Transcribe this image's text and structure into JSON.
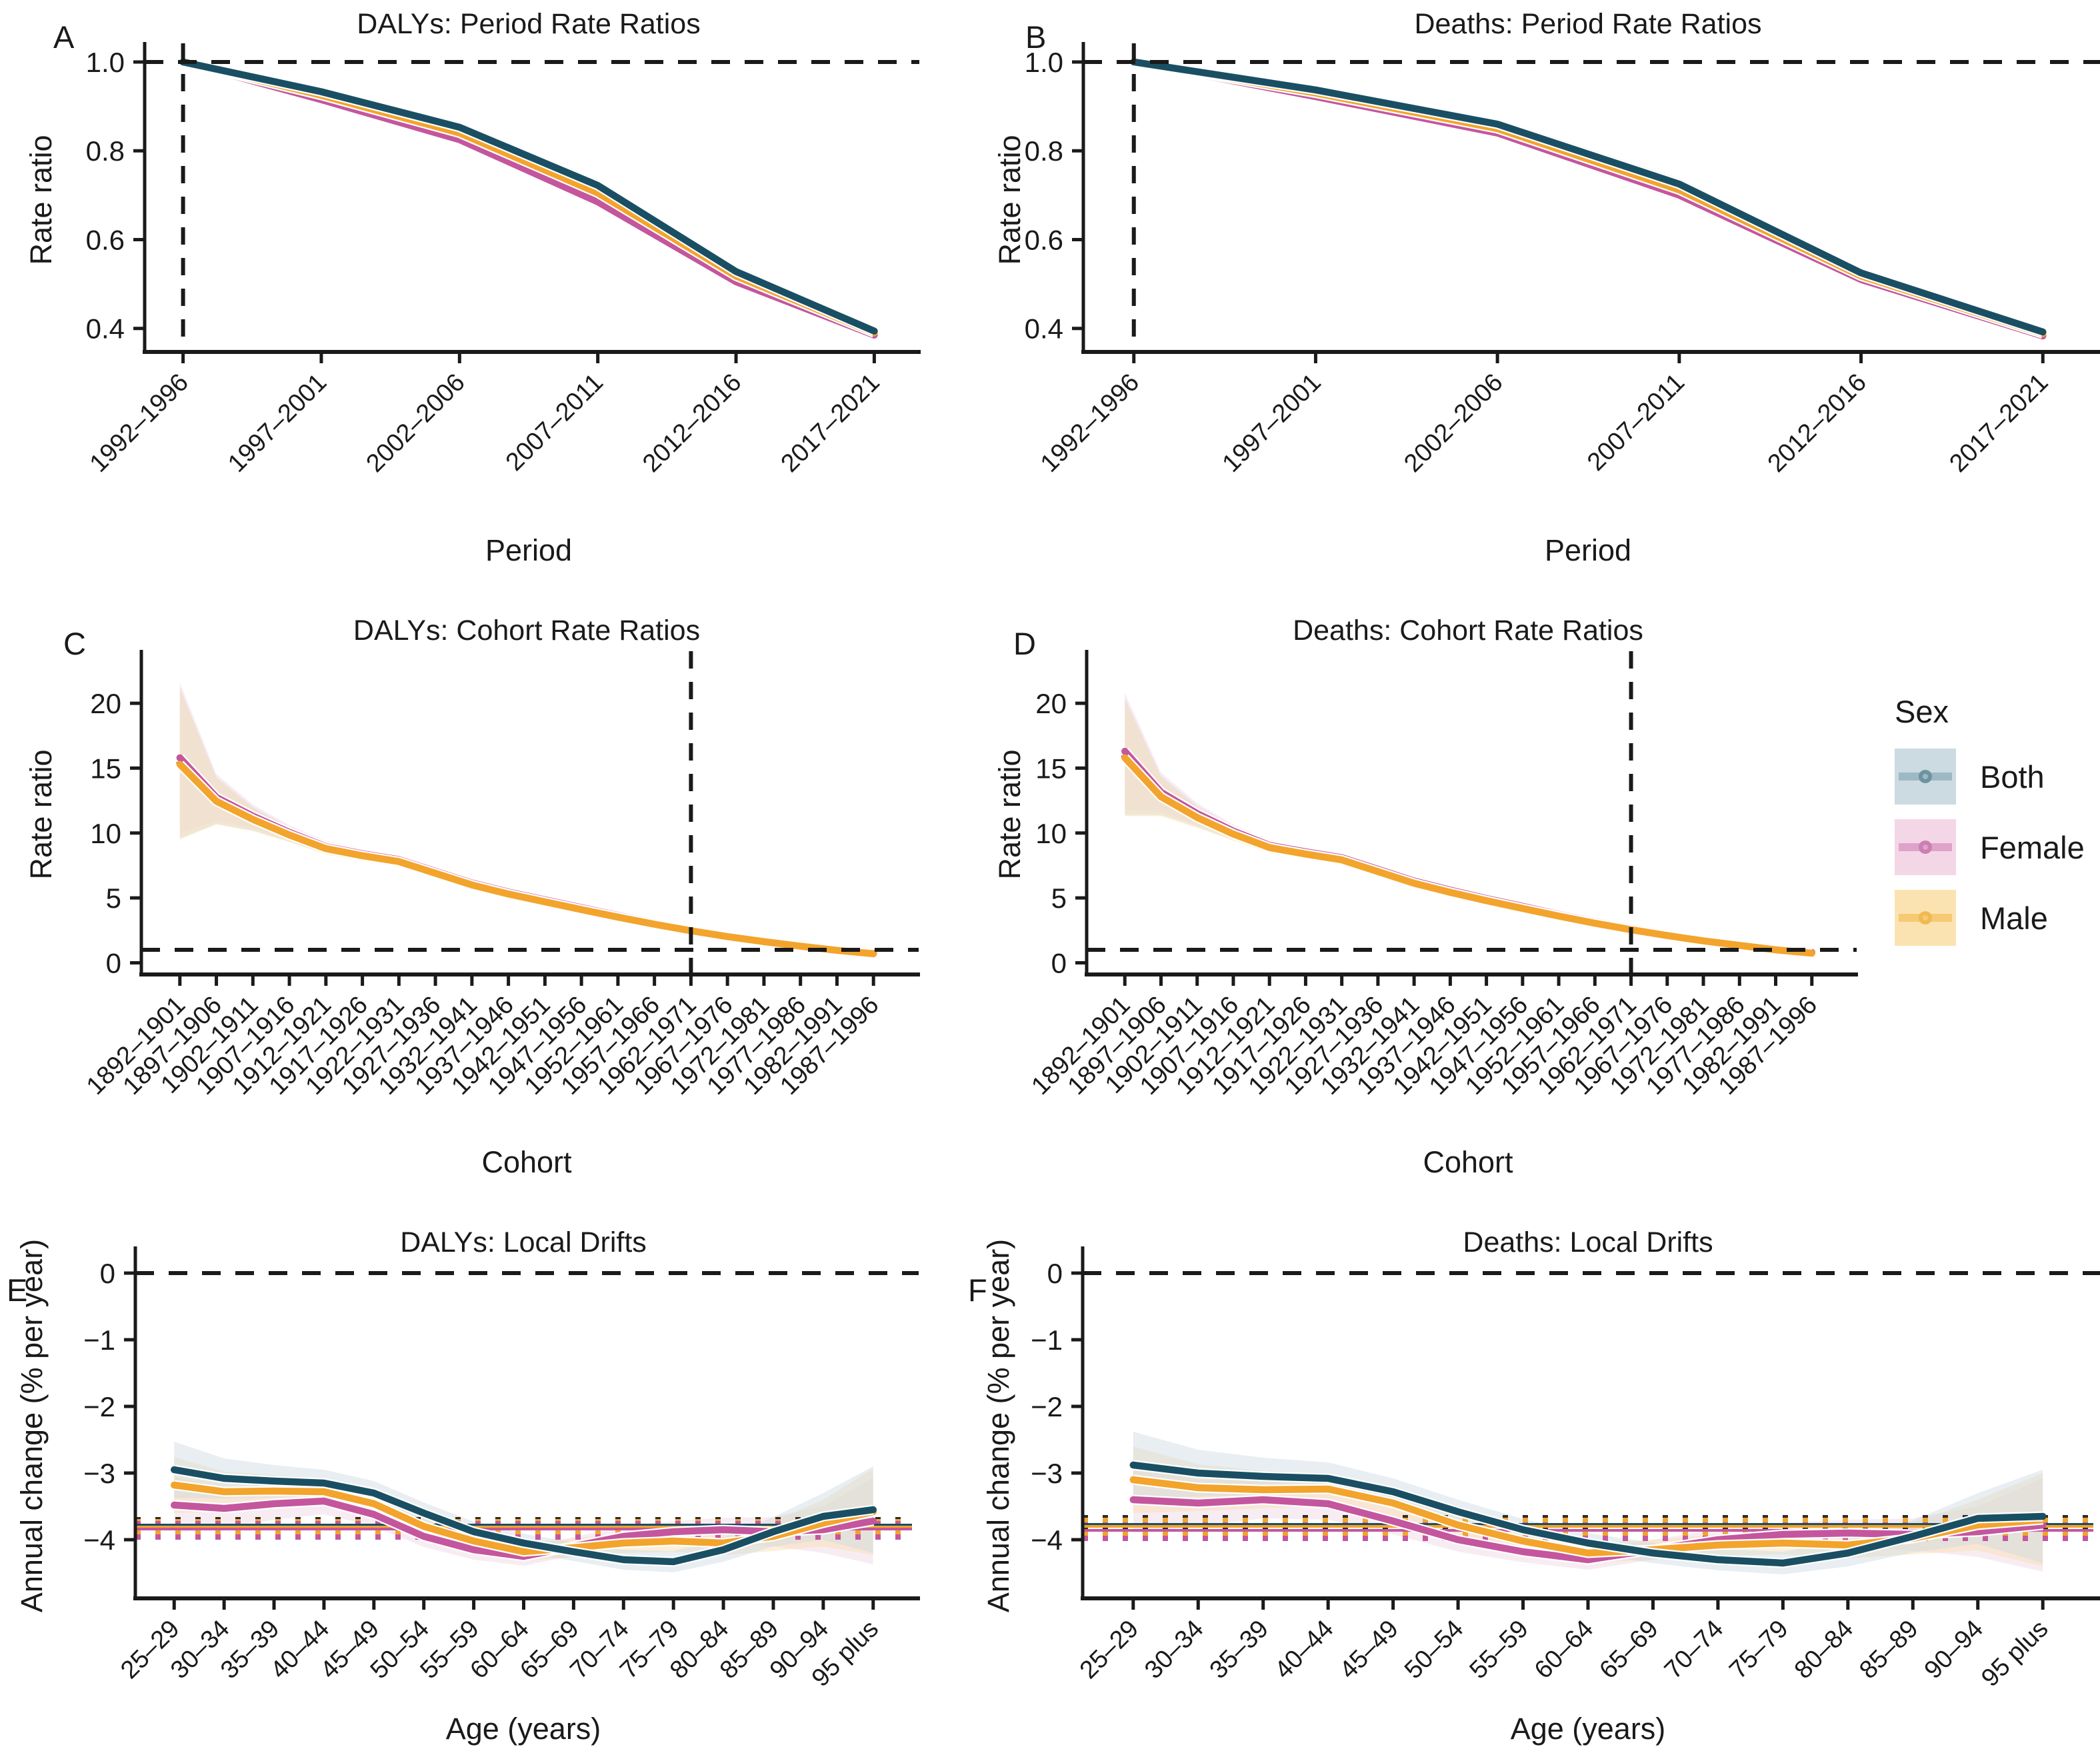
{
  "legend": {
    "title": "Sex",
    "entries": [
      {
        "id": "both",
        "label": "Both"
      },
      {
        "id": "female",
        "label": "Female"
      },
      {
        "id": "male",
        "label": "Male"
      }
    ]
  },
  "colors": {
    "both": {
      "line": "#1a4f63",
      "band": "#ccd9e2",
      "legend_fill": "#ccdbe1",
      "legend_line": "#9db9c4",
      "legend_dot": "#6d93a1"
    },
    "female": {
      "line": "#c4569e",
      "band": "#f0d4e4",
      "legend_fill": "#f4d7e6",
      "legend_line": "#dfa3ca",
      "legend_dot": "#cb7fb2"
    },
    "male": {
      "line": "#f2a42c",
      "band": "#f8ddb0",
      "legend_fill": "#fbe3b1",
      "legend_line": "#f6ca74",
      "legend_dot": "#efba50"
    },
    "dark": {
      "line": "#2b2b2b",
      "band": "#d9d9d9"
    },
    "axis": "#1a1a1a"
  },
  "chart_data": [
    {
      "panel_label": "A",
      "type": "line",
      "title": "DALYs: Period Rate Ratios",
      "xlabel": "Period",
      "ylabel": "Rate ratio",
      "categories": [
        "1992–1996",
        "1997–2001",
        "2002–2006",
        "2007–2011",
        "2012–2016",
        "2017–2021"
      ],
      "yticks": [
        {
          "v": 0.4,
          "label": "0.4"
        },
        {
          "v": 0.6,
          "label": "0.6"
        },
        {
          "v": 0.8,
          "label": "0.8"
        },
        {
          "v": 1.0,
          "label": "1.0"
        }
      ],
      "ylim": [
        0.347,
        1.03
      ],
      "hline": 1.0,
      "vline_category_index": 0,
      "band_halfwidth": [
        0.005,
        0.01,
        0.012,
        0.013,
        0.011,
        0.008
      ],
      "series": [
        {
          "id": "female",
          "name": "Female",
          "values": [
            1.0,
            0.915,
            0.825,
            0.685,
            0.505,
            0.385
          ]
        },
        {
          "id": "male",
          "name": "Male",
          "values": [
            1.0,
            0.925,
            0.84,
            0.705,
            0.518,
            0.39
          ]
        },
        {
          "id": "both",
          "name": "Both",
          "values": [
            1.0,
            0.933,
            0.853,
            0.722,
            0.528,
            0.394
          ]
        }
      ]
    },
    {
      "panel_label": "B",
      "type": "line",
      "title": "Deaths: Period Rate Ratios",
      "xlabel": "Period",
      "ylabel": "Rate ratio",
      "categories": [
        "1992–1996",
        "1997–2001",
        "2002–2006",
        "2007–2011",
        "2012–2016",
        "2017–2021"
      ],
      "yticks": [
        {
          "v": 0.4,
          "label": "0.4"
        },
        {
          "v": 0.6,
          "label": "0.6"
        },
        {
          "v": 0.8,
          "label": "0.8"
        },
        {
          "v": 1.0,
          "label": "1.0"
        }
      ],
      "ylim": [
        0.347,
        1.03
      ],
      "hline": 1.0,
      "vline_category_index": 0,
      "band_halfwidth": [
        0.005,
        0.01,
        0.012,
        0.013,
        0.011,
        0.008
      ],
      "series": [
        {
          "id": "female",
          "name": "Female",
          "values": [
            1.0,
            0.922,
            0.84,
            0.7,
            0.51,
            0.383
          ]
        },
        {
          "id": "male",
          "name": "Male",
          "values": [
            1.0,
            0.93,
            0.85,
            0.712,
            0.518,
            0.388
          ]
        },
        {
          "id": "both",
          "name": "Both",
          "values": [
            1.0,
            0.937,
            0.86,
            0.725,
            0.525,
            0.392
          ]
        }
      ]
    },
    {
      "panel_label": "C",
      "type": "line",
      "title": "DALYs: Cohort Rate Ratios",
      "xlabel": "Cohort",
      "ylabel": "Rate ratio",
      "categories": [
        "1892–1901",
        "1897–1906",
        "1902–1911",
        "1907–1916",
        "1912–1921",
        "1917–1926",
        "1922–1931",
        "1927–1936",
        "1932–1941",
        "1937–1946",
        "1942–1951",
        "1947–1956",
        "1952–1961",
        "1957–1966",
        "1962–1971",
        "1967–1976",
        "1972–1981",
        "1977–1986",
        "1982–1991",
        "1987–1996"
      ],
      "yticks": [
        {
          "v": 0,
          "label": "0"
        },
        {
          "v": 5,
          "label": "5"
        },
        {
          "v": 10,
          "label": "10"
        },
        {
          "v": 15,
          "label": "15"
        },
        {
          "v": 20,
          "label": "20"
        }
      ],
      "ylim": [
        -0.9,
        23.6
      ],
      "hline": 1.0,
      "vline_category_index": 14,
      "band_halfwidth": [
        5.8,
        1.8,
        0.9,
        0.55,
        0.45,
        0.4,
        0.35,
        0.3,
        0.27,
        0.24,
        0.21,
        0.18,
        0.16,
        0.14,
        0.12,
        0.1,
        0.09,
        0.08,
        0.07,
        0.07
      ],
      "series": [
        {
          "id": "both",
          "name": "Both",
          "values": [
            15.4,
            12.5,
            11.1,
            9.9,
            8.85,
            8.3,
            7.85,
            6.95,
            6.05,
            5.35,
            4.75,
            4.15,
            3.55,
            3.0,
            2.5,
            2.05,
            1.65,
            1.3,
            0.98,
            0.72
          ]
        },
        {
          "id": "female",
          "name": "Female",
          "values": [
            15.8,
            12.75,
            11.3,
            10.05,
            8.95,
            8.4,
            7.95,
            7.05,
            6.15,
            5.45,
            4.85,
            4.25,
            3.65,
            3.08,
            2.57,
            2.11,
            1.7,
            1.34,
            1.01,
            0.75
          ]
        },
        {
          "id": "male",
          "name": "Male",
          "values": [
            15.3,
            12.45,
            11.05,
            9.85,
            8.8,
            8.25,
            7.8,
            6.9,
            6.0,
            5.3,
            4.7,
            4.1,
            3.52,
            2.97,
            2.47,
            2.02,
            1.63,
            1.28,
            0.96,
            0.7
          ]
        }
      ]
    },
    {
      "panel_label": "D",
      "type": "line",
      "title": "Deaths: Cohort Rate Ratios",
      "xlabel": "Cohort",
      "ylabel": "Rate ratio",
      "categories": [
        "1892–1901",
        "1897–1906",
        "1902–1911",
        "1907–1916",
        "1912–1921",
        "1917–1926",
        "1922–1931",
        "1927–1936",
        "1932–1941",
        "1937–1946",
        "1942–1951",
        "1947–1956",
        "1952–1961",
        "1957–1966",
        "1962–1971",
        "1967–1976",
        "1972–1981",
        "1977–1986",
        "1982–1991",
        "1987–1996"
      ],
      "yticks": [
        {
          "v": 0,
          "label": "0"
        },
        {
          "v": 5,
          "label": "5"
        },
        {
          "v": 10,
          "label": "10"
        },
        {
          "v": 15,
          "label": "15"
        },
        {
          "v": 20,
          "label": "20"
        }
      ],
      "ylim": [
        -0.9,
        23.6
      ],
      "hline": 1.0,
      "vline_category_index": 14,
      "band_halfwidth": [
        4.5,
        1.5,
        0.8,
        0.5,
        0.42,
        0.38,
        0.33,
        0.28,
        0.25,
        0.22,
        0.2,
        0.17,
        0.15,
        0.13,
        0.11,
        0.1,
        0.09,
        0.08,
        0.07,
        0.07
      ],
      "series": [
        {
          "id": "both",
          "name": "Both",
          "values": [
            15.9,
            12.9,
            11.3,
            10.0,
            8.95,
            8.45,
            8.0,
            7.1,
            6.2,
            5.5,
            4.85,
            4.25,
            3.65,
            3.1,
            2.6,
            2.14,
            1.72,
            1.37,
            1.03,
            0.77
          ]
        },
        {
          "id": "female",
          "name": "Female",
          "values": [
            16.3,
            13.15,
            11.5,
            10.15,
            9.05,
            8.55,
            8.1,
            7.2,
            6.3,
            5.6,
            4.95,
            4.35,
            3.73,
            3.17,
            2.66,
            2.19,
            1.77,
            1.41,
            1.06,
            0.8
          ]
        },
        {
          "id": "male",
          "name": "Male",
          "values": [
            15.8,
            12.8,
            11.2,
            9.92,
            8.88,
            8.38,
            7.93,
            7.03,
            6.13,
            5.43,
            4.79,
            4.19,
            3.6,
            3.05,
            2.55,
            2.1,
            1.69,
            1.34,
            1.0,
            0.74
          ]
        }
      ]
    },
    {
      "panel_label": "E",
      "type": "line",
      "title": "DALYs: Local Drifts",
      "xlabel": "Age (years)",
      "ylabel": "Annual change (% per year)",
      "categories": [
        "25–29",
        "30–34",
        "35–39",
        "40–44",
        "45–49",
        "50–54",
        "55–59",
        "60–64",
        "65–69",
        "70–74",
        "75–79",
        "80–84",
        "85–89",
        "90–94",
        "95 plus"
      ],
      "yticks": [
        {
          "v": 0,
          "label": "0"
        },
        {
          "v": -1,
          "label": "−1"
        },
        {
          "v": -2,
          "label": "−2"
        },
        {
          "v": -3,
          "label": "−3"
        },
        {
          "v": -4,
          "label": "−4"
        }
      ],
      "ylim": [
        -4.88,
        0.3
      ],
      "hline": 0,
      "band_halfwidth": [
        0.42,
        0.3,
        0.24,
        0.2,
        0.18,
        0.16,
        0.15,
        0.14,
        0.14,
        0.15,
        0.16,
        0.18,
        0.22,
        0.35,
        0.65
      ],
      "reference_lines": {
        "solid": [
          {
            "series": "both",
            "value": -3.78
          },
          {
            "series": "male",
            "value": -3.81
          },
          {
            "series": "female",
            "value": -3.84
          }
        ],
        "dotted": [
          {
            "series": "dark",
            "value": -3.7
          },
          {
            "series": "male",
            "value": -3.73
          },
          {
            "series": "female",
            "value": -3.76
          },
          {
            "series": "dark",
            "value": -3.86
          },
          {
            "series": "male",
            "value": -3.9
          },
          {
            "series": "female",
            "value": -3.96
          }
        ]
      },
      "series": [
        {
          "id": "female",
          "name": "Female",
          "values": [
            -3.48,
            -3.53,
            -3.46,
            -3.42,
            -3.62,
            -3.95,
            -4.15,
            -4.25,
            -4.1,
            -3.95,
            -3.88,
            -3.85,
            -3.88,
            -3.85,
            -3.72
          ]
        },
        {
          "id": "male",
          "name": "Male",
          "values": [
            -3.18,
            -3.28,
            -3.27,
            -3.28,
            -3.46,
            -3.8,
            -4.02,
            -4.18,
            -4.12,
            -4.05,
            -4.02,
            -4.05,
            -3.95,
            -3.75,
            -3.58
          ]
        },
        {
          "id": "both",
          "name": "Both",
          "values": [
            -2.95,
            -3.08,
            -3.12,
            -3.15,
            -3.3,
            -3.6,
            -3.88,
            -4.05,
            -4.18,
            -4.3,
            -4.33,
            -4.15,
            -3.88,
            -3.65,
            -3.55
          ]
        }
      ]
    },
    {
      "panel_label": "F",
      "type": "line",
      "title": "Deaths: Local Drifts",
      "xlabel": "Age (years)",
      "ylabel": "Annual change (% per year)",
      "categories": [
        "25–29",
        "30–34",
        "35–39",
        "40–44",
        "45–49",
        "50–54",
        "55–59",
        "60–64",
        "65–69",
        "70–74",
        "75–79",
        "80–84",
        "85–89",
        "90–94",
        "95 plus"
      ],
      "yticks": [
        {
          "v": 0,
          "label": "0"
        },
        {
          "v": -1,
          "label": "−1"
        },
        {
          "v": -2,
          "label": "−2"
        },
        {
          "v": -3,
          "label": "−3"
        },
        {
          "v": -4,
          "label": "−4"
        }
      ],
      "ylim": [
        -4.88,
        0.3
      ],
      "hline": 0,
      "band_halfwidth": [
        0.5,
        0.35,
        0.28,
        0.24,
        0.2,
        0.18,
        0.16,
        0.15,
        0.15,
        0.16,
        0.17,
        0.2,
        0.24,
        0.38,
        0.7
      ],
      "reference_lines": {
        "solid": [
          {
            "series": "both",
            "value": -3.77
          },
          {
            "series": "male",
            "value": -3.8
          },
          {
            "series": "female",
            "value": -3.86
          }
        ],
        "dotted": [
          {
            "series": "dark",
            "value": -3.67
          },
          {
            "series": "male",
            "value": -3.71
          },
          {
            "series": "female",
            "value": -3.78
          },
          {
            "series": "dark",
            "value": -3.86
          },
          {
            "series": "male",
            "value": -3.91
          },
          {
            "series": "female",
            "value": -3.98
          }
        ]
      },
      "series": [
        {
          "id": "female",
          "name": "Female",
          "values": [
            -3.4,
            -3.45,
            -3.4,
            -3.46,
            -3.72,
            -4.0,
            -4.18,
            -4.3,
            -4.15,
            -4.0,
            -3.92,
            -3.9,
            -3.92,
            -3.88,
            -3.78
          ]
        },
        {
          "id": "male",
          "name": "Male",
          "values": [
            -3.1,
            -3.22,
            -3.25,
            -3.24,
            -3.45,
            -3.78,
            -4.02,
            -4.2,
            -4.15,
            -4.08,
            -4.05,
            -4.08,
            -3.98,
            -3.78,
            -3.7
          ]
        },
        {
          "id": "both",
          "name": "Both",
          "values": [
            -2.88,
            -3.0,
            -3.05,
            -3.08,
            -3.28,
            -3.58,
            -3.85,
            -4.05,
            -4.2,
            -4.3,
            -4.35,
            -4.2,
            -3.95,
            -3.68,
            -3.65
          ]
        }
      ]
    }
  ]
}
